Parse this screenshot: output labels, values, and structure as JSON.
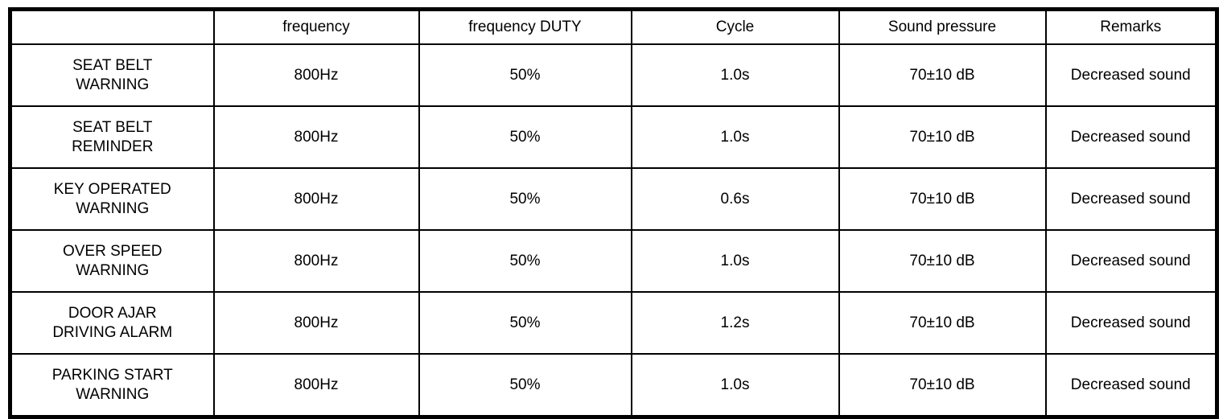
{
  "table": {
    "columns": [
      "",
      "frequency",
      "frequency DUTY",
      "Cycle",
      "Sound pressure",
      "Remarks"
    ],
    "rows": [
      [
        "SEAT BELT\nWARNING",
        "800Hz",
        "50%",
        "1.0s",
        "70±10 dB",
        "Decreased sound"
      ],
      [
        "SEAT BELT\nREMINDER",
        "800Hz",
        "50%",
        "1.0s",
        "70±10 dB",
        "Decreased sound"
      ],
      [
        "KEY OPERATED\nWARNING",
        "800Hz",
        "50%",
        "0.6s",
        "70±10 dB",
        "Decreased sound"
      ],
      [
        "OVER SPEED\nWARNING",
        "800Hz",
        "50%",
        "1.0s",
        "70±10 dB",
        "Decreased sound"
      ],
      [
        "DOOR AJAR\nDRIVING ALARM",
        "800Hz",
        "50%",
        "1.2s",
        "70±10 dB",
        "Decreased sound"
      ],
      [
        "PARKING START\nWARNING",
        "800Hz",
        "50%",
        "1.0s",
        "70±10 dB",
        "Decreased sound"
      ]
    ],
    "colors": {
      "border": "#000000",
      "text": "#000000",
      "background": "#ffffff"
    }
  }
}
